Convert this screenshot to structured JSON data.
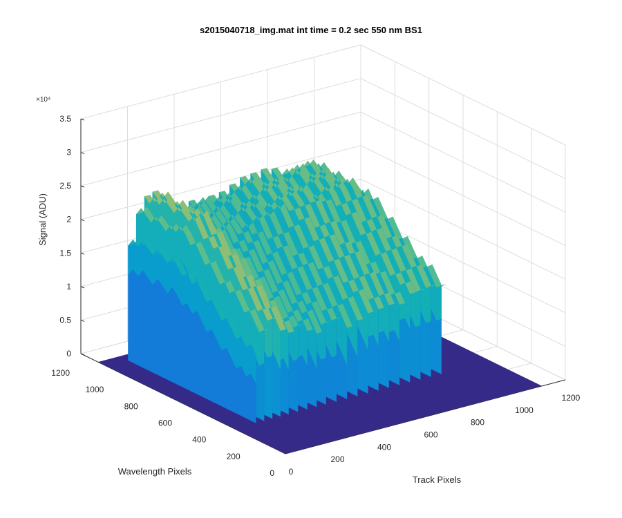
{
  "title": "s2015040718_img.mat int time = 0.2 sec  550 nm BS1",
  "chart_data": {
    "type": "surface",
    "xlabel": "Track Pixels",
    "ylabel": "Wavelength Pixels",
    "zlabel": "Signal (ADU)",
    "z_multiplier": "×10⁴",
    "xlim": [
      0,
      1200
    ],
    "ylim": [
      0,
      1200
    ],
    "zlim": [
      0,
      35000
    ],
    "x_ticks": [
      "0",
      "200",
      "400",
      "600",
      "800",
      "1000",
      "1200"
    ],
    "y_ticks": [
      "0",
      "200",
      "400",
      "600",
      "800",
      "1000",
      "1200"
    ],
    "z_ticks": [
      "0",
      "0.5",
      "1",
      "1.5",
      "2",
      "2.5",
      "3",
      "3.5"
    ],
    "grid": true,
    "colormap": "parula",
    "data_extent": {
      "x": [
        0,
        1100
      ],
      "y": [
        0,
        1100
      ]
    },
    "wavelength_band_y": [
      300,
      1050
    ],
    "baseline": 0,
    "tracks": [
      {
        "x": 105,
        "peak": 18000,
        "low": 10000
      },
      {
        "x": 140,
        "peak": 22000,
        "low": 13000
      },
      {
        "x": 175,
        "peak": 24000,
        "low": 14000
      },
      {
        "x": 210,
        "peak": 24000,
        "low": 13500
      },
      {
        "x": 245,
        "peak": 22500,
        "low": 12500
      },
      {
        "x": 285,
        "peak": 21000,
        "low": 12000
      },
      {
        "x": 325,
        "peak": 21000,
        "low": 11500
      },
      {
        "x": 365,
        "peak": 21000,
        "low": 11500
      },
      {
        "x": 405,
        "peak": 21000,
        "low": 11500
      },
      {
        "x": 450,
        "peak": 21500,
        "low": 11500
      },
      {
        "x": 495,
        "peak": 21500,
        "low": 11500
      },
      {
        "x": 540,
        "peak": 22000,
        "low": 12000
      },
      {
        "x": 585,
        "peak": 22500,
        "low": 12500
      },
      {
        "x": 630,
        "peak": 22500,
        "low": 12500
      },
      {
        "x": 675,
        "peak": 22500,
        "low": 12500
      },
      {
        "x": 720,
        "peak": 22000,
        "low": 12000
      },
      {
        "x": 765,
        "peak": 22500,
        "low": 13000
      },
      {
        "x": 810,
        "peak": 22500,
        "low": 13000
      },
      {
        "x": 855,
        "peak": 22500,
        "low": 13000
      },
      {
        "x": 900,
        "peak": 21500,
        "low": 12500
      }
    ]
  }
}
